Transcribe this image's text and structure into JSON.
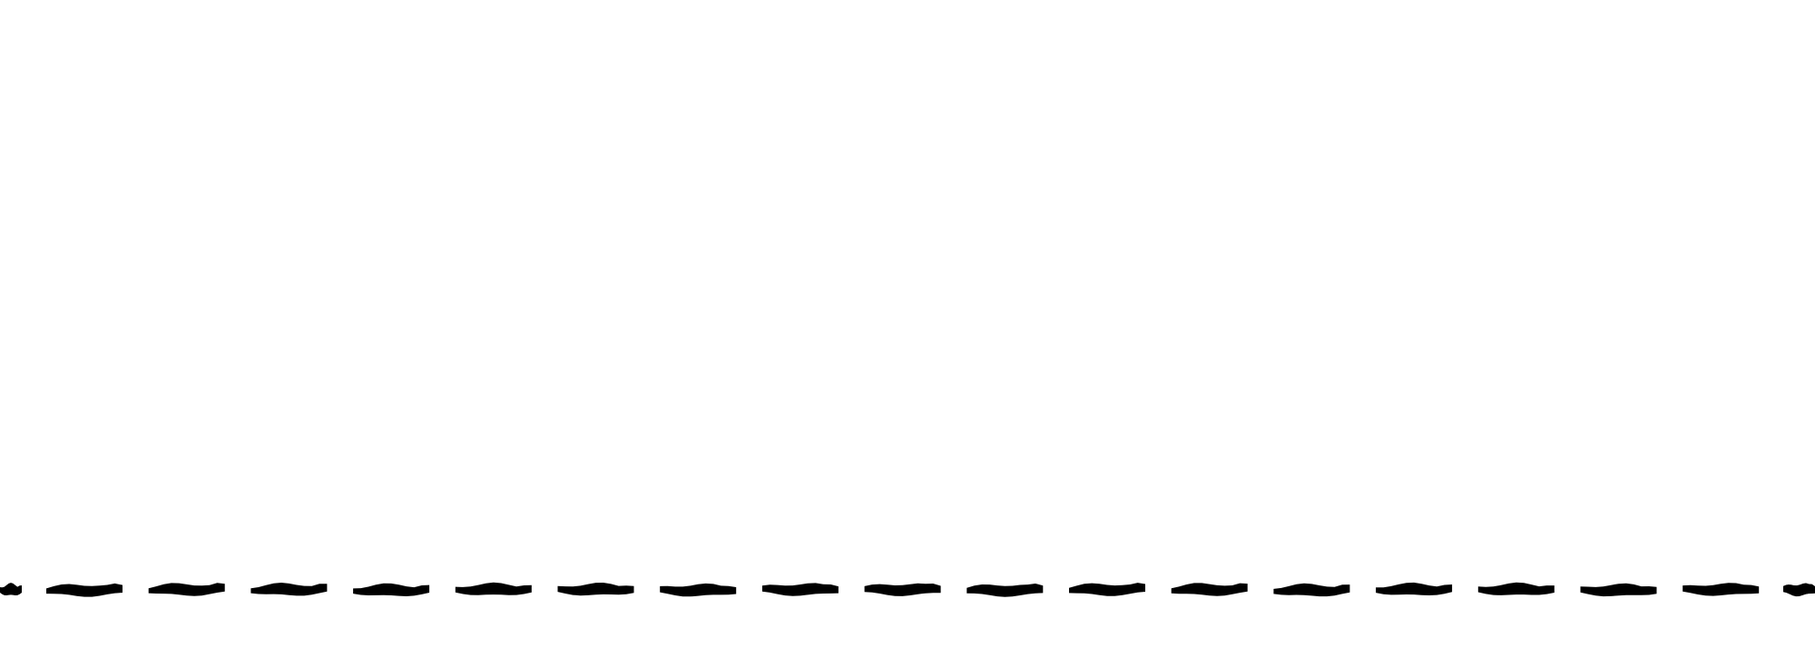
{
  "background_color": "#ffffff",
  "stroke_color": "#000000",
  "graphic": {
    "description_icon": "dashed-line-icon",
    "dash_count": 18
  }
}
